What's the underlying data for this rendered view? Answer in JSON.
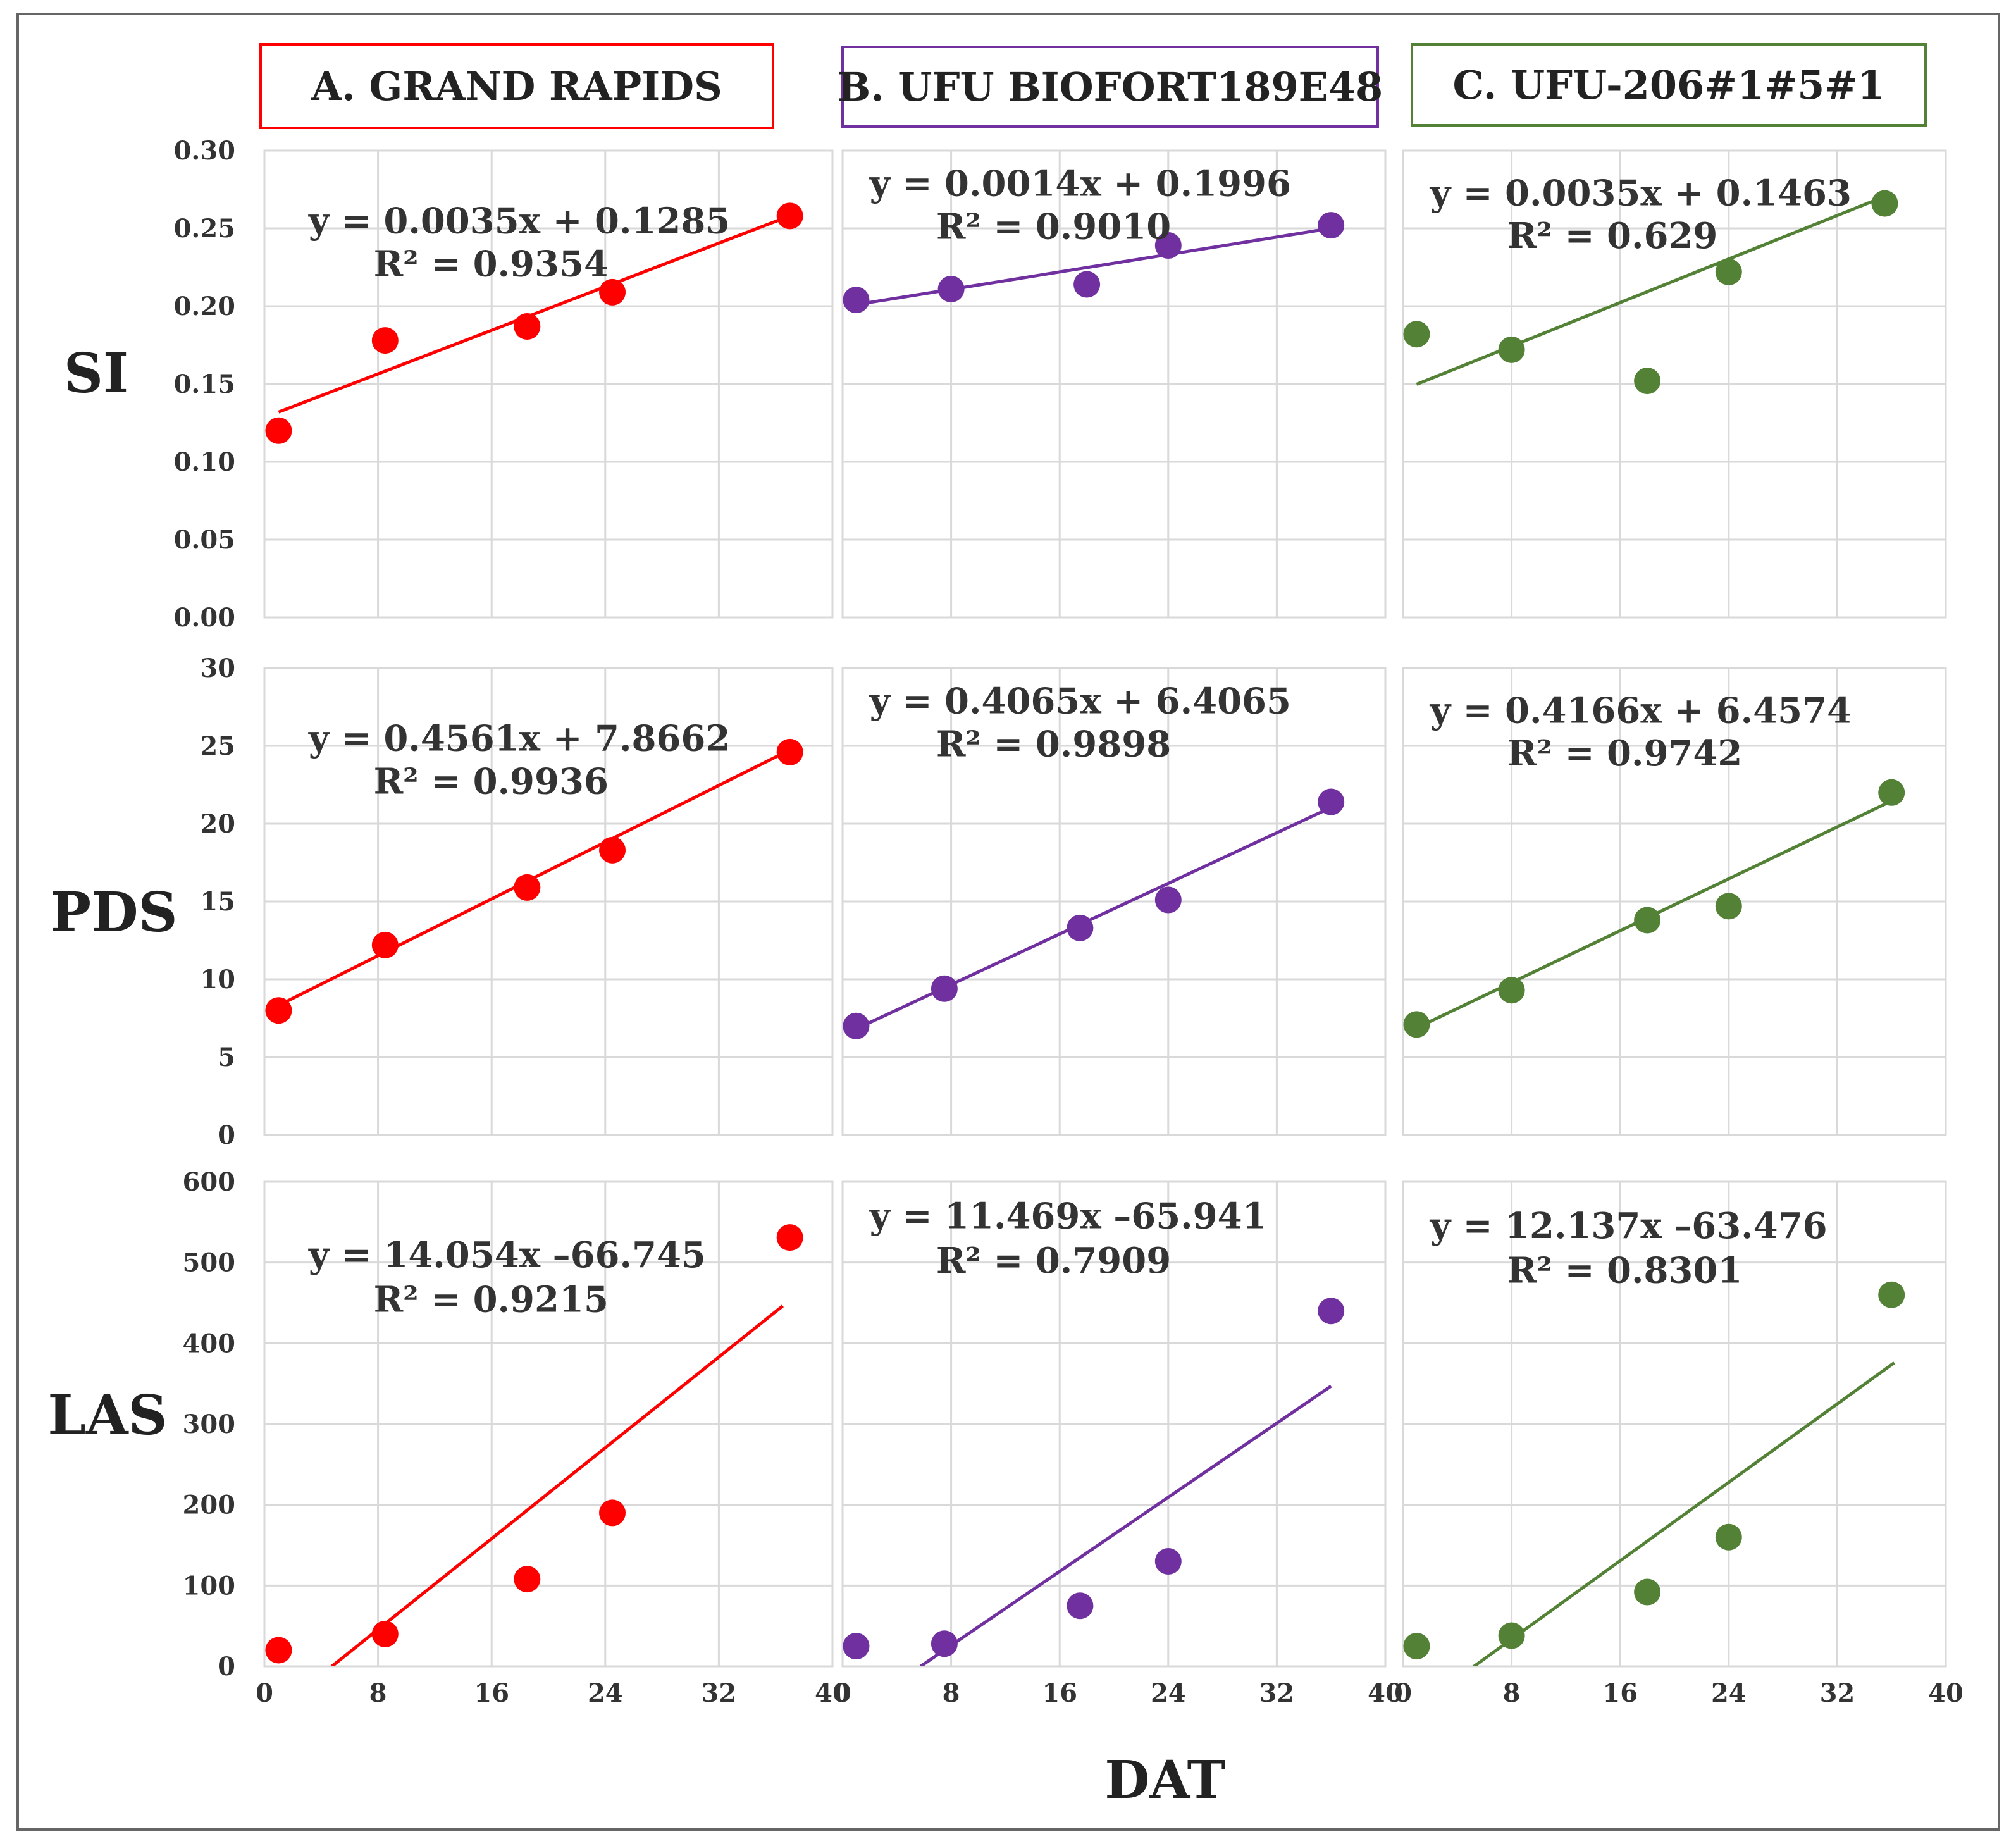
{
  "chart_data": {
    "type": "scatter",
    "x_title": "DAT",
    "x_ticks": [
      "0",
      "8",
      "16",
      "24",
      "32",
      "40"
    ],
    "xlim": [
      0,
      40
    ],
    "columns": [
      {
        "id": "A",
        "header": "A. GRAND RAPIDS",
        "color": "#ff0000"
      },
      {
        "id": "B",
        "header": "B. UFU BIOFORT189E48",
        "color": "#7030a0"
      },
      {
        "id": "C",
        "header": "C. UFU-206#1#5#1",
        "color": "#538135"
      }
    ],
    "rows": [
      {
        "label": "SI",
        "ylim": [
          0,
          0.3
        ],
        "y_ticks": [
          "0.00",
          "0.05",
          "0.10",
          "0.15",
          "0.20",
          "0.25",
          "0.30"
        ],
        "panels": [
          {
            "equation": "y = 0.0035x + 0.1285",
            "r2": "R² = 0.9354",
            "points": [
              [
                1,
                0.12
              ],
              [
                8.5,
                0.178
              ],
              [
                18.5,
                0.187
              ],
              [
                24.5,
                0.209
              ],
              [
                37,
                0.258
              ]
            ],
            "trend": {
              "slope": 0.0035,
              "intercept": 0.1285,
              "x_from": 1,
              "x_to": 37
            }
          },
          {
            "equation": "y = 0.0014x + 0.1996",
            "r2": "R² = 0.9010",
            "points": [
              [
                1,
                0.204
              ],
              [
                8,
                0.211
              ],
              [
                18,
                0.214
              ],
              [
                24,
                0.239
              ],
              [
                36,
                0.252
              ]
            ],
            "trend": {
              "slope": 0.0014,
              "intercept": 0.1996,
              "x_from": 1,
              "x_to": 36
            }
          },
          {
            "equation": "y = 0.0035x + 0.1463",
            "r2": "R² = 0.629",
            "points": [
              [
                1,
                0.182
              ],
              [
                8,
                0.172
              ],
              [
                18,
                0.152
              ],
              [
                24,
                0.222
              ],
              [
                35.5,
                0.266
              ]
            ],
            "trend": {
              "slope": 0.0035,
              "intercept": 0.1463,
              "x_from": 1,
              "x_to": 36
            }
          }
        ]
      },
      {
        "label": "PDS",
        "ylim": [
          0,
          30
        ],
        "y_ticks": [
          "0",
          "5",
          "10",
          "15",
          "20",
          "25",
          "30"
        ],
        "panels": [
          {
            "equation": "y = 0.4561x + 7.8662",
            "r2": "R² = 0.9936",
            "points": [
              [
                1,
                8.0
              ],
              [
                8.5,
                12.2
              ],
              [
                18.5,
                15.9
              ],
              [
                24.5,
                18.3
              ],
              [
                37,
                24.6
              ]
            ],
            "trend": {
              "slope": 0.4561,
              "intercept": 7.8662,
              "x_from": 1,
              "x_to": 37
            }
          },
          {
            "equation": "y = 0.4065x + 6.4065",
            "r2": "R² = 0.9898",
            "points": [
              [
                1,
                7.0
              ],
              [
                7.5,
                9.4
              ],
              [
                17.5,
                13.3
              ],
              [
                24,
                15.1
              ],
              [
                36,
                21.4
              ]
            ],
            "trend": {
              "slope": 0.4065,
              "intercept": 6.4065,
              "x_from": 1,
              "x_to": 36
            }
          },
          {
            "equation": "y = 0.4166x + 6.4574",
            "r2": "R² = 0.9742",
            "points": [
              [
                1,
                7.1
              ],
              [
                8,
                9.3
              ],
              [
                18,
                13.8
              ],
              [
                24,
                14.7
              ],
              [
                36,
                22.0
              ]
            ],
            "trend": {
              "slope": 0.4166,
              "intercept": 6.4574,
              "x_from": 1,
              "x_to": 36
            }
          }
        ]
      },
      {
        "label": "LAS",
        "ylim": [
          0,
          600
        ],
        "y_ticks": [
          "0",
          "100",
          "200",
          "300",
          "400",
          "500",
          "600"
        ],
        "panels": [
          {
            "equation": "y = 14.054x –66.745",
            "r2": "R² = 0.9215",
            "points": [
              [
                1,
                20
              ],
              [
                8.5,
                40
              ],
              [
                18.5,
                108
              ],
              [
                24.5,
                190
              ],
              [
                37,
                531
              ]
            ],
            "trend": {
              "slope": 14.054,
              "intercept": -66.745,
              "x_from": 4.75,
              "x_to": 36.5
            }
          },
          {
            "equation": "y = 11.469x –65.941",
            "r2": "R² = 0.7909",
            "points": [
              [
                1,
                25
              ],
              [
                7.5,
                28
              ],
              [
                17.5,
                75
              ],
              [
                24,
                130
              ],
              [
                36,
                440
              ]
            ],
            "trend": {
              "slope": 11.469,
              "intercept": -65.941,
              "x_from": 5.75,
              "x_to": 36
            }
          },
          {
            "equation": "y = 12.137x –63.476",
            "r2": "R² = 0.8301",
            "points": [
              [
                1,
                25
              ],
              [
                8,
                38
              ],
              [
                18,
                92
              ],
              [
                24,
                160
              ],
              [
                36,
                460
              ]
            ],
            "trend": {
              "slope": 12.137,
              "intercept": -63.476,
              "x_from": 5.2,
              "x_to": 36.2
            }
          }
        ]
      }
    ]
  }
}
